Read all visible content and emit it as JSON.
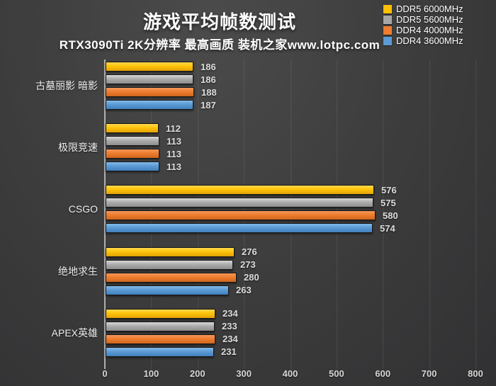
{
  "header": {
    "title": "游戏平均帧数测试",
    "subtitle": "RTX3090Ti 2K分辨率 最高画质 装机之家www.lotpc.com"
  },
  "chart_data": {
    "type": "bar",
    "orientation": "horizontal",
    "title": "游戏平均帧数测试",
    "subtitle": "RTX3090Ti 2K分辨率 最高画质 装机之家www.lotpc.com",
    "categories": [
      "古墓丽影 暗影",
      "极限竞速",
      "CSGO",
      "绝地求生",
      "APEX英雄"
    ],
    "series": [
      {
        "name": "DDR5 6000MHz",
        "color": "#FFC000",
        "values": [
          186,
          112,
          576,
          276,
          234
        ]
      },
      {
        "name": "DDR5 5600MHz",
        "color": "#A6A6A6",
        "values": [
          186,
          113,
          575,
          273,
          233
        ]
      },
      {
        "name": "DDR4 4000MHz",
        "color": "#ED7D31",
        "values": [
          188,
          113,
          580,
          280,
          234
        ]
      },
      {
        "name": "DDR4 3600MHz",
        "color": "#5B9BD5",
        "values": [
          187,
          113,
          574,
          263,
          231
        ]
      }
    ],
    "xlim": [
      0,
      800
    ],
    "x_ticks": [
      0,
      100,
      200,
      300,
      400,
      500,
      600,
      700,
      800
    ],
    "grid": "vertical-major",
    "legend_position": "top-right",
    "value_labels": true
  },
  "colors": {
    "background": "#3d3d3d",
    "title_text": "#ffffff",
    "tick_text": "#d6d6d6",
    "value_text": "#dcdcdc",
    "axis_line": "#c3c3c3"
  }
}
